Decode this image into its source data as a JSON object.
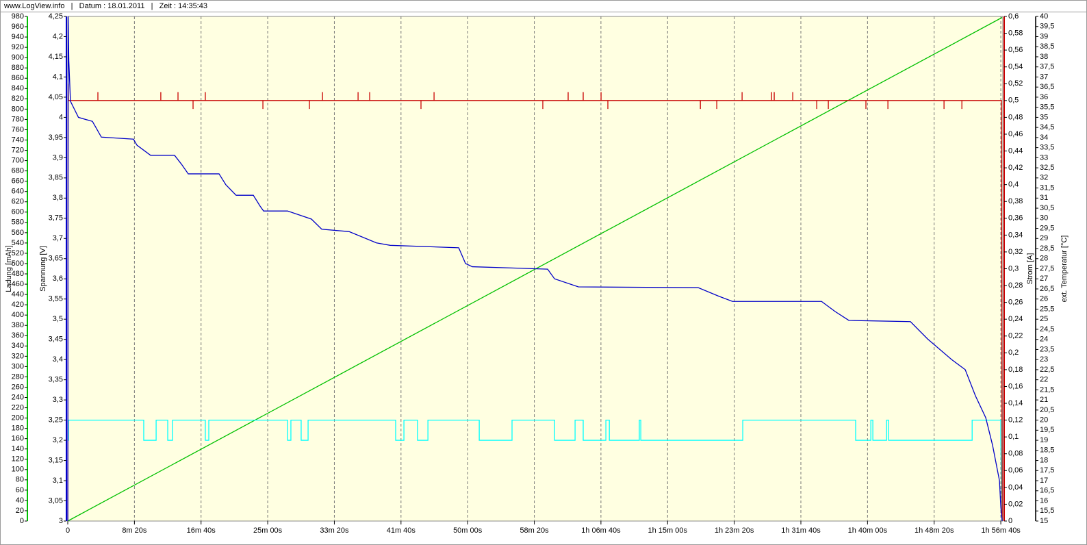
{
  "chart_data": {
    "type": "line",
    "title": "www.LogView.info   |   Datum : 18.01.2011   |   Zeit : 14:35:43",
    "xlim": [
      0,
      7015
    ],
    "xticks": [
      0,
      {
        "value": 500,
        "label": "8m 20s"
      },
      {
        "value": 1000,
        "label": "16m 40s"
      },
      {
        "value": 1500,
        "label": "25m 00s"
      },
      {
        "value": 2000,
        "label": "33m 20s"
      },
      {
        "value": 2500,
        "label": "41m 40s"
      },
      {
        "value": 3000,
        "label": "50m 00s"
      },
      {
        "value": 3500,
        "label": "58m 20s"
      },
      {
        "value": 4000,
        "label": "1h 06m 40s"
      },
      {
        "value": 4500,
        "label": "1h 15m 00s"
      },
      {
        "value": 5000,
        "label": "1h 23m 20s"
      },
      {
        "value": 5500,
        "label": "1h 31m 40s"
      },
      {
        "value": 6000,
        "label": "1h 40m 00s"
      },
      {
        "value": 6500,
        "label": "1h 48m 20s"
      },
      {
        "value": 7000,
        "label": "1h 56m 40s"
      }
    ],
    "grid": true,
    "ylabel": "Ladung [mAh]",
    "ycolor": "#00c000",
    "ylim": [
      0,
      980
    ],
    "yticks": [
      0,
      20,
      40,
      60,
      80,
      100,
      120,
      140,
      160,
      180,
      200,
      220,
      240,
      260,
      280,
      300,
      320,
      340,
      360,
      380,
      400,
      420,
      440,
      460,
      480,
      500,
      520,
      540,
      560,
      580,
      600,
      620,
      640,
      660,
      680,
      700,
      720,
      740,
      760,
      780,
      800,
      820,
      840,
      860,
      880,
      900,
      920,
      940,
      960,
      980
    ],
    "y2label": "Spannung [V]",
    "y2color": "#0000c8",
    "y2lim": [
      3,
      4.25
    ],
    "y2ticks": [
      3,
      {
        "value": 3.05,
        "label": "3,05"
      },
      {
        "value": 3.1,
        "label": "3,1"
      },
      {
        "value": 3.15,
        "label": "3,15"
      },
      {
        "value": 3.2,
        "label": "3,2"
      },
      {
        "value": 3.25,
        "label": "3,25"
      },
      {
        "value": 3.3,
        "label": "3,3"
      },
      {
        "value": 3.35,
        "label": "3,35"
      },
      {
        "value": 3.4,
        "label": "3,4"
      },
      {
        "value": 3.45,
        "label": "3,45"
      },
      {
        "value": 3.5,
        "label": "3,5"
      },
      {
        "value": 3.55,
        "label": "3,55"
      },
      {
        "value": 3.6,
        "label": "3,6"
      },
      {
        "value": 3.65,
        "label": "3,65"
      },
      {
        "value": 3.7,
        "label": "3,7"
      },
      {
        "value": 3.75,
        "label": "3,75"
      },
      {
        "value": 3.8,
        "label": "3,8"
      },
      {
        "value": 3.85,
        "label": "3,85"
      },
      {
        "value": 3.9,
        "label": "3,9"
      },
      {
        "value": 3.95,
        "label": "3,95"
      },
      4,
      {
        "value": 4.05,
        "label": "4,05"
      },
      {
        "value": 4.1,
        "label": "4,1"
      },
      {
        "value": 4.15,
        "label": "4,15"
      },
      {
        "value": 4.2,
        "label": "4,2"
      },
      {
        "value": 4.25,
        "label": "4,25"
      }
    ],
    "y3label": "Strom [A]",
    "y3color": "#c80000",
    "y3lim": [
      0,
      0.6
    ],
    "y3ticks": [
      0,
      {
        "value": 0.02,
        "label": "0,02"
      },
      {
        "value": 0.04,
        "label": "0,04"
      },
      {
        "value": 0.06,
        "label": "0,06"
      },
      {
        "value": 0.08,
        "label": "0,08"
      },
      {
        "value": 0.1,
        "label": "0,1"
      },
      {
        "value": 0.12,
        "label": "0,12"
      },
      {
        "value": 0.14,
        "label": "0,14"
      },
      {
        "value": 0.16,
        "label": "0,16"
      },
      {
        "value": 0.18,
        "label": "0,18"
      },
      {
        "value": 0.2,
        "label": "0,2"
      },
      {
        "value": 0.22,
        "label": "0,22"
      },
      {
        "value": 0.24,
        "label": "0,24"
      },
      {
        "value": 0.26,
        "label": "0,26"
      },
      {
        "value": 0.28,
        "label": "0,28"
      },
      {
        "value": 0.3,
        "label": "0,3"
      },
      {
        "value": 0.32,
        "label": "0,32"
      },
      {
        "value": 0.34,
        "label": "0,34"
      },
      {
        "value": 0.36,
        "label": "0,36"
      },
      {
        "value": 0.38,
        "label": "0,38"
      },
      {
        "value": 0.4,
        "label": "0,4"
      },
      {
        "value": 0.42,
        "label": "0,42"
      },
      {
        "value": 0.44,
        "label": "0,44"
      },
      {
        "value": 0.46,
        "label": "0,46"
      },
      {
        "value": 0.48,
        "label": "0,48"
      },
      {
        "value": 0.5,
        "label": "0,5"
      },
      {
        "value": 0.52,
        "label": "0,52"
      },
      {
        "value": 0.54,
        "label": "0,54"
      },
      {
        "value": 0.56,
        "label": "0,56"
      },
      {
        "value": 0.58,
        "label": "0,58"
      },
      {
        "value": 0.6,
        "label": "0,6"
      }
    ],
    "y4label": "ext. Temperatur [°C]",
    "y4color": "#333333",
    "y4lim": [
      15,
      40
    ],
    "y4ticks": [
      15,
      {
        "value": 15.5,
        "label": "15,5"
      },
      16,
      {
        "value": 16.5,
        "label": "16,5"
      },
      17,
      {
        "value": 17.5,
        "label": "17,5"
      },
      18,
      {
        "value": 18.5,
        "label": "18,5"
      },
      19,
      {
        "value": 19.5,
        "label": "19,5"
      },
      20,
      {
        "value": 20.5,
        "label": "20,5"
      },
      21,
      {
        "value": 21.5,
        "label": "21,5"
      },
      22,
      {
        "value": 22.5,
        "label": "22,5"
      },
      23,
      {
        "value": 23.5,
        "label": "23,5"
      },
      24,
      {
        "value": 24.5,
        "label": "24,5"
      },
      25,
      {
        "value": 25.5,
        "label": "25,5"
      },
      26,
      {
        "value": 26.5,
        "label": "26,5"
      },
      27,
      {
        "value": 27.5,
        "label": "27,5"
      },
      28,
      {
        "value": 28.5,
        "label": "28,5"
      },
      29,
      {
        "value": 29.5,
        "label": "29,5"
      },
      30,
      {
        "value": 30.5,
        "label": "30,5"
      },
      31,
      {
        "value": 31.5,
        "label": "31,5"
      },
      32,
      {
        "value": 32.5,
        "label": "32,5"
      },
      33,
      {
        "value": 33.5,
        "label": "33,5"
      },
      34,
      {
        "value": 34.5,
        "label": "34,5"
      },
      35,
      {
        "value": 35.5,
        "label": "35,5"
      },
      36,
      {
        "value": 36.5,
        "label": "36,5"
      },
      37,
      {
        "value": 37.5,
        "label": "37,5"
      },
      38,
      {
        "value": 38.5,
        "label": "38,5"
      },
      39,
      {
        "value": 39.5,
        "label": "39,5"
      },
      40
    ],
    "series": [
      {
        "color": "#00c000",
        "axis": "y",
        "x": [
          0,
          7010
        ],
        "values": [
          0,
          978
        ]
      },
      {
        "color": "#00ffff",
        "axis": "y4",
        "x": [
          0,
          5,
          5,
          570,
          570,
          663,
          663,
          750,
          750,
          786,
          786,
          1032,
          1032,
          1058,
          1058,
          1649,
          1649,
          1674,
          1674,
          1751,
          1751,
          1803,
          1803,
          2460,
          2460,
          2522,
          2522,
          2624,
          2624,
          2702,
          2702,
          3087,
          3087,
          3333,
          3333,
          3652,
          3652,
          3806,
          3806,
          3867,
          3867,
          4037,
          4037,
          4063,
          4063,
          4288,
          4288,
          4299,
          4299,
          5064,
          5064,
          5911,
          5911,
          6025,
          6025,
          6040,
          6040,
          6143,
          6143,
          6158,
          6158,
          6785,
          6785,
          7000,
          7000,
          7010
        ],
        "values": [
          19,
          19,
          20,
          20,
          19,
          19,
          20,
          20,
          19,
          19,
          20,
          20,
          19,
          19,
          20,
          20,
          19,
          19,
          20,
          20,
          19,
          19,
          20,
          20,
          19,
          19,
          20,
          20,
          19,
          19,
          20,
          20,
          19,
          19,
          20,
          20,
          19,
          19,
          20,
          20,
          19,
          19,
          20,
          20,
          19,
          19,
          20,
          20,
          19,
          19,
          20,
          20,
          19,
          19,
          20,
          20,
          19,
          19,
          20,
          20,
          19,
          19,
          20,
          20,
          19,
          15
        ]
      },
      {
        "color": "#c80000",
        "axis": "y3",
        "x": [
          0,
          3,
          5,
          226,
          226,
          226,
          698,
          698,
          698,
          827,
          827,
          827,
          940,
          940,
          940,
          1032,
          1032,
          1032,
          1464,
          1464,
          1464,
          1813,
          1813,
          1813,
          1911,
          1911,
          1911,
          2178,
          2178,
          2178,
          2265,
          2265,
          2265,
          2650,
          2650,
          2650,
          2748,
          2748,
          2748,
          3564,
          3564,
          3564,
          3754,
          3754,
          3754,
          3867,
          3867,
          3867,
          4001,
          4001,
          4001,
          4052,
          4052,
          4052,
          4746,
          4746,
          4746,
          4869,
          4869,
          4869,
          5059,
          5059,
          5059,
          5280,
          5280,
          5280,
          5300,
          5300,
          5300,
          5439,
          5439,
          5439,
          5619,
          5619,
          5619,
          5706,
          5706,
          5706,
          5988,
          5988,
          5988,
          6153,
          6153,
          6153,
          6574,
          6574,
          6574,
          6708,
          6708,
          6708,
          7005,
          7010
        ],
        "values": [
          0,
          0.52,
          0.5,
          0.5,
          0.51,
          0.5,
          0.5,
          0.51,
          0.5,
          0.5,
          0.51,
          0.5,
          0.5,
          0.49,
          0.5,
          0.5,
          0.51,
          0.5,
          0.5,
          0.49,
          0.5,
          0.5,
          0.49,
          0.5,
          0.5,
          0.51,
          0.5,
          0.5,
          0.51,
          0.5,
          0.5,
          0.51,
          0.5,
          0.5,
          0.49,
          0.5,
          0.5,
          0.51,
          0.5,
          0.5,
          0.49,
          0.5,
          0.5,
          0.51,
          0.5,
          0.5,
          0.51,
          0.5,
          0.5,
          0.51,
          0.5,
          0.5,
          0.49,
          0.5,
          0.5,
          0.49,
          0.5,
          0.5,
          0.49,
          0.5,
          0.5,
          0.51,
          0.5,
          0.5,
          0.51,
          0.5,
          0.5,
          0.51,
          0.5,
          0.5,
          0.51,
          0.5,
          0.5,
          0.49,
          0.5,
          0.5,
          0.49,
          0.5,
          0.5,
          0.49,
          0.5,
          0.5,
          0.49,
          0.5,
          0.5,
          0.49,
          0.5,
          0.5,
          0.49,
          0.5,
          0.5,
          0
        ]
      },
      {
        "color": "#0000c8",
        "axis": "y2",
        "x": [
          0,
          3,
          8,
          20,
          50,
          80,
          185,
          211,
          252,
          493,
          519,
          621,
          801,
          853,
          904,
          1135,
          1186,
          1263,
          1392,
          1443,
          1469,
          1649,
          1828,
          1905,
          2111,
          2316,
          2419,
          2933,
          2984,
          3035,
          3600,
          3652,
          3831,
          4730,
          4884,
          4987,
          5655,
          5757,
          5860,
          6322,
          6451,
          6631,
          6733,
          6810,
          6887,
          6938,
          6990,
          7000,
          7010
        ],
        "values": [
          3,
          4.25,
          4.14,
          4.04,
          4.02,
          4,
          3.99,
          3.975,
          3.951,
          3.946,
          3.931,
          3.906,
          3.906,
          3.884,
          3.86,
          3.86,
          3.833,
          3.807,
          3.807,
          3.78,
          3.768,
          3.768,
          3.748,
          3.723,
          3.717,
          3.689,
          3.683,
          3.677,
          3.638,
          3.63,
          3.624,
          3.6,
          3.58,
          3.578,
          3.557,
          3.544,
          3.544,
          3.519,
          3.497,
          3.494,
          3.451,
          3.4,
          3.375,
          3.31,
          3.256,
          3.188,
          3.1,
          3.035,
          3
        ]
      }
    ]
  }
}
